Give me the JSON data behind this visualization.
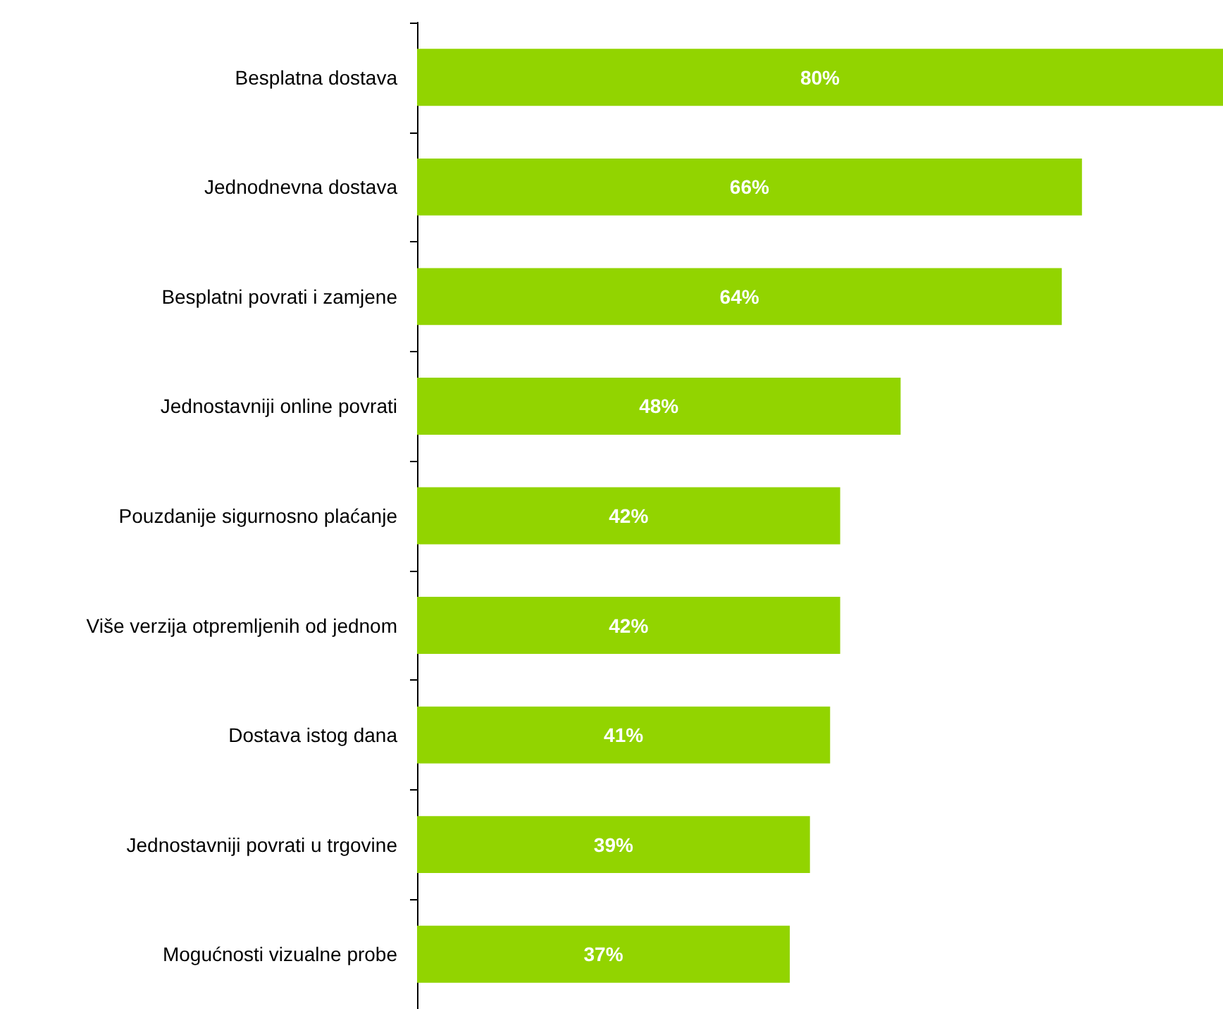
{
  "chart_data": {
    "type": "bar",
    "orientation": "horizontal",
    "categories": [
      "Besplatna dostava",
      "Jednodnevna dostava",
      "Besplatni povrati i zamjene",
      "Jednostavniji online povrati",
      "Pouzdanije sigurnosno plaćanje",
      "Više verzija otpremljenih od jednom",
      "Dostava istog dana",
      "Jednostavniji povrati u trgovine",
      "Mogućnosti vizualne probe"
    ],
    "values": [
      80,
      66,
      64,
      48,
      42,
      42,
      41,
      39,
      37
    ],
    "value_labels": [
      "80%",
      "66%",
      "64%",
      "48%",
      "42%",
      "42%",
      "41%",
      "39%",
      "37%"
    ],
    "color": "#92d400"
  }
}
